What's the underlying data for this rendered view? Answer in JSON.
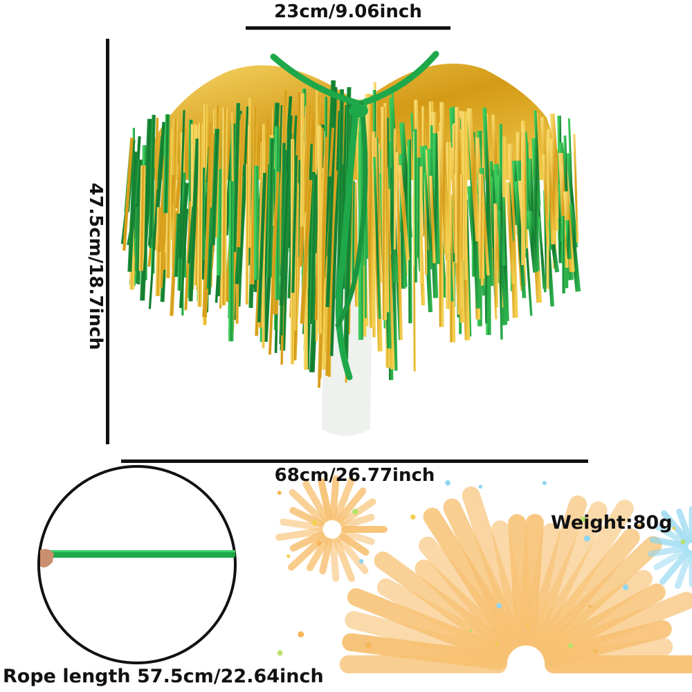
{
  "dimensions": {
    "top_width": "23cm/9.06inch",
    "height": "47.5cm/18.7inch",
    "width": "68cm/26.77inch"
  },
  "weight": "Weight:80g",
  "rope_length": "Rope length 57.5cm/22.64inch",
  "colors": {
    "tinsel_green": "#1f9a3a",
    "tinsel_gold": "#e2b22a",
    "ribbon_green": "#1ea84a",
    "firework_orange": "#f6b65a",
    "firework_blue": "#8fd6f0",
    "line": "#111111"
  }
}
